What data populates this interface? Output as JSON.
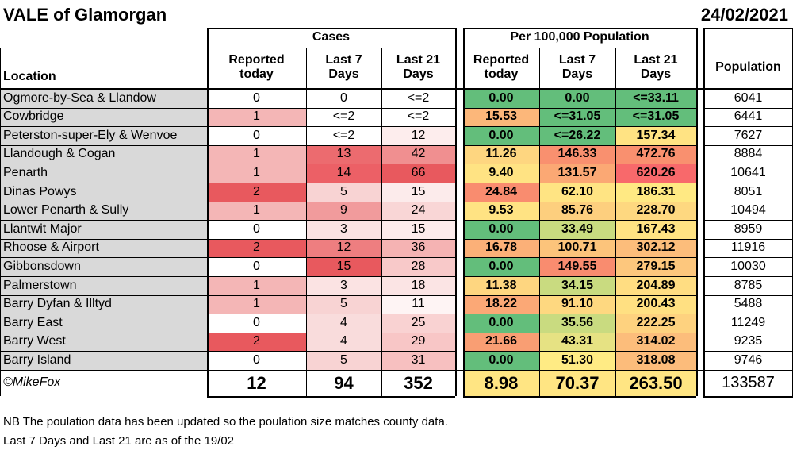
{
  "header": {
    "title": "VALE of Glamorgan",
    "date": "24/02/2021"
  },
  "groups": {
    "cases": "Cases",
    "per100k": "Per 100,000 Population"
  },
  "columns": {
    "location": "Location",
    "reported_today": "Reported today",
    "last7": "Last 7 Days",
    "last21": "Last 21 Days",
    "p_reported_today": "Reported today",
    "p_last7": "Last 7 Days",
    "p_last21": "Last 21 Days",
    "population": "Population"
  },
  "rows": [
    {
      "location": "Ogmore-by-Sea & Llandow",
      "today": "0",
      "last7": "0",
      "last21": "<=2",
      "p_today": "0.00",
      "p_last7": "0.00",
      "p_last21": "<=33.11",
      "population": "6041"
    },
    {
      "location": "Cowbridge",
      "today": "1",
      "last7": "<=2",
      "last21": "<=2",
      "p_today": "15.53",
      "p_last7": "<=31.05",
      "p_last21": "<=31.05",
      "population": "6441"
    },
    {
      "location": "Peterston-super-Ely & Wenvoe",
      "today": "0",
      "last7": "<=2",
      "last21": "12",
      "p_today": "0.00",
      "p_last7": "<=26.22",
      "p_last21": "157.34",
      "population": "7627"
    },
    {
      "location": "Llandough & Cogan",
      "today": "1",
      "last7": "13",
      "last21": "42",
      "p_today": "11.26",
      "p_last7": "146.33",
      "p_last21": "472.76",
      "population": "8884"
    },
    {
      "location": "Penarth",
      "today": "1",
      "last7": "14",
      "last21": "66",
      "p_today": "9.40",
      "p_last7": "131.57",
      "p_last21": "620.26",
      "population": "10641"
    },
    {
      "location": "Dinas Powys",
      "today": "2",
      "last7": "5",
      "last21": "15",
      "p_today": "24.84",
      "p_last7": "62.10",
      "p_last21": "186.31",
      "population": "8051"
    },
    {
      "location": "Lower Penarth & Sully",
      "today": "1",
      "last7": "9",
      "last21": "24",
      "p_today": "9.53",
      "p_last7": "85.76",
      "p_last21": "228.70",
      "population": "10494"
    },
    {
      "location": "Llantwit Major",
      "today": "0",
      "last7": "3",
      "last21": "15",
      "p_today": "0.00",
      "p_last7": "33.49",
      "p_last21": "167.43",
      "population": "8959"
    },
    {
      "location": "Rhoose & Airport",
      "today": "2",
      "last7": "12",
      "last21": "36",
      "p_today": "16.78",
      "p_last7": "100.71",
      "p_last21": "302.12",
      "population": "11916"
    },
    {
      "location": "Gibbonsdown",
      "today": "0",
      "last7": "15",
      "last21": "28",
      "p_today": "0.00",
      "p_last7": "149.55",
      "p_last21": "279.15",
      "population": "10030"
    },
    {
      "location": "Palmerstown",
      "today": "1",
      "last7": "3",
      "last21": "18",
      "p_today": "11.38",
      "p_last7": "34.15",
      "p_last21": "204.89",
      "population": "8785"
    },
    {
      "location": "Barry Dyfan & Illtyd",
      "today": "1",
      "last7": "5",
      "last21": "11",
      "p_today": "18.22",
      "p_last7": "91.10",
      "p_last21": "200.43",
      "population": "5488"
    },
    {
      "location": "Barry East",
      "today": "0",
      "last7": "4",
      "last21": "25",
      "p_today": "0.00",
      "p_last7": "35.56",
      "p_last21": "222.25",
      "population": "11249"
    },
    {
      "location": "Barry West",
      "today": "2",
      "last7": "4",
      "last21": "29",
      "p_today": "21.66",
      "p_last7": "43.31",
      "p_last21": "314.02",
      "population": "9235"
    },
    {
      "location": "Barry Island",
      "today": "0",
      "last7": "5",
      "last21": "31",
      "p_today": "0.00",
      "p_last7": "51.30",
      "p_last21": "318.08",
      "population": "9746"
    }
  ],
  "totals": {
    "credit": "©MikeFox",
    "today": "12",
    "last7": "94",
    "last21": "352",
    "p_today": "8.98",
    "p_last7": "70.37",
    "p_last21": "263.50",
    "population": "133587"
  },
  "notes": [
    "NB The poulation data has been updated so the poulation size matches county data.",
    "Last 7 Days and Last 21 are as of the 19/02"
  ],
  "colors": {
    "location_bg": "#d9d9d9",
    "cases_today": [
      "#ffffff",
      "#f4b6b6",
      "#ffffff",
      "#f4b6b6",
      "#f4b6b6",
      "#e8595e",
      "#f4b6b6",
      "#ffffff",
      "#e8595e",
      "#ffffff",
      "#f4b6b6",
      "#f4b6b6",
      "#ffffff",
      "#e8595e",
      "#ffffff"
    ],
    "cases_last7": [
      "#ffffff",
      "#ffffff",
      "#ffffff",
      "#ec6b6f",
      "#ec6066",
      "#f8d3d3",
      "#f19b9c",
      "#fbe3e3",
      "#ee7e80",
      "#e8595e",
      "#fbe3e3",
      "#f8d3d3",
      "#f9dcdc",
      "#f9dcdc",
      "#f8d3d3"
    ],
    "cases_last21": [
      "#ffffff",
      "#ffffff",
      "#fdeded",
      "#f08f90",
      "#e8595e",
      "#fcebeb",
      "#f9d6d6",
      "#fcebeb",
      "#f5b3b3",
      "#f8c9c9",
      "#fbe4e4",
      "#fef4f4",
      "#f9d2d2",
      "#f8c6c6",
      "#f7c0c0"
    ],
    "p_today": [
      "#63be7b",
      "#fcb77a",
      "#63be7b",
      "#fed680",
      "#ffe383",
      "#f98c6f",
      "#ffe383",
      "#63be7b",
      "#fbb078",
      "#63be7b",
      "#fed680",
      "#fba876",
      "#63be7b",
      "#f99e73",
      "#63be7b"
    ],
    "p_last7": [
      "#63be7b",
      "#63be7b",
      "#63be7b",
      "#f9906f",
      "#fba874",
      "#ffe483",
      "#fdcf7e",
      "#c9db80",
      "#fcc47b",
      "#f98c6f",
      "#c9db80",
      "#fed880",
      "#c9db80",
      "#e6e283",
      "#ffeb84"
    ],
    "p_last21": [
      "#63be7b",
      "#63be7b",
      "#ffe383",
      "#f9906f",
      "#f8696b",
      "#ffe983",
      "#fed880",
      "#ffe383",
      "#fcbd7b",
      "#fdc77d",
      "#ffdd82",
      "#ffe082",
      "#fed27f",
      "#fcbd7b",
      "#fcbc7b"
    ],
    "totals_per100k": "#ffe583"
  }
}
